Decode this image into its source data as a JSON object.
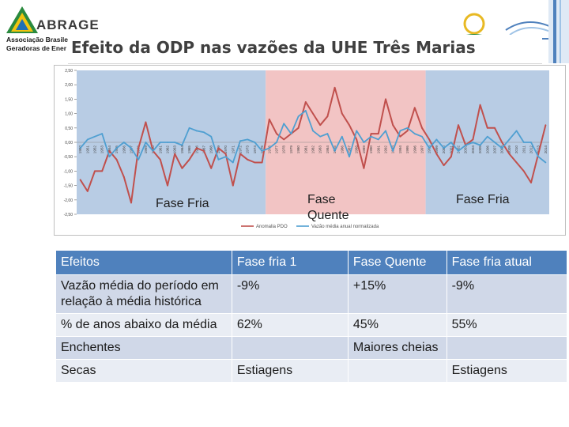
{
  "header": {
    "logo_name": "ABRAGE",
    "logo_sub_line1": "Associação Brasileira",
    "logo_sub_line2": "Geradoras de Ener",
    "title": "Efeito da ODP nas vazões da UHE Três Marias"
  },
  "phases": [
    {
      "label": "Fase Fria",
      "color": "#b8cce4"
    },
    {
      "label": "Fase Quente",
      "color": "#f2c4c4"
    },
    {
      "label": "Fase Fria",
      "color": "#b8cce4"
    }
  ],
  "chart_data": {
    "type": "line",
    "x": [
      1950,
      1951,
      1952,
      1953,
      1954,
      1955,
      1956,
      1957,
      1958,
      1959,
      1960,
      1961,
      1962,
      1963,
      1964,
      1965,
      1966,
      1967,
      1968,
      1969,
      1970,
      1971,
      1972,
      1973,
      1974,
      1975,
      1976,
      1977,
      1978,
      1979,
      1980,
      1981,
      1982,
      1983,
      1984,
      1985,
      1986,
      1987,
      1988,
      1989,
      1990,
      1991,
      1992,
      1993,
      1994,
      1995,
      1996,
      1997,
      1998,
      1999,
      2000,
      2001,
      2002,
      2003,
      2004,
      2005,
      2006,
      2007,
      2008,
      2009,
      2010,
      2011,
      2012,
      2013,
      2014
    ],
    "ylim": [
      -2.5,
      2.5
    ],
    "yticks": [
      "2,50",
      "2,00",
      "1,50",
      "1,00",
      "0,50",
      "0,00",
      "-0,50",
      "-1,00",
      "-1,50",
      "-2,00",
      "-2,50"
    ],
    "series": [
      {
        "name": "Anomalia PDO",
        "color": "#c0504d",
        "values": [
          -1.3,
          -1.7,
          -1.0,
          -1.0,
          -0.3,
          -0.6,
          -1.2,
          -2.1,
          -0.2,
          0.7,
          -0.3,
          -0.6,
          -1.5,
          -0.4,
          -0.9,
          -0.6,
          -0.2,
          -0.3,
          -0.9,
          -0.2,
          -0.4,
          -1.5,
          -0.4,
          -0.6,
          -0.7,
          -0.7,
          0.8,
          0.3,
          0.1,
          0.3,
          0.5,
          1.4,
          1.0,
          0.6,
          0.9,
          1.9,
          1.0,
          0.6,
          0.1,
          -0.9,
          0.3,
          0.3,
          1.5,
          0.6,
          0.2,
          0.4,
          1.2,
          0.5,
          0.1,
          -0.4,
          -0.8,
          -0.5,
          0.6,
          -0.1,
          0.1,
          1.3,
          0.5,
          0.5,
          0.0,
          -0.4,
          -0.7,
          -1.0,
          -1.4,
          -0.4,
          0.6
        ]
      },
      {
        "name": "Vazão média anual normalizada",
        "color": "#4f9fd1",
        "values": [
          -0.2,
          0.1,
          0.2,
          0.3,
          -0.5,
          -0.2,
          0.0,
          -0.2,
          -0.6,
          0.0,
          -0.3,
          0.0,
          0.0,
          0.0,
          -0.1,
          0.5,
          0.4,
          0.35,
          0.2,
          -0.6,
          -0.5,
          -0.7,
          0.05,
          0.1,
          0.0,
          -0.3,
          -0.2,
          0.0,
          0.65,
          0.3,
          0.9,
          1.1,
          0.4,
          0.2,
          0.3,
          -0.3,
          0.2,
          -0.5,
          0.4,
          0.0,
          0.2,
          0.1,
          0.4,
          -0.3,
          0.4,
          0.5,
          0.3,
          0.2,
          -0.2,
          0.1,
          -0.2,
          0.0,
          -0.3,
          -0.1,
          0.0,
          -0.1,
          0.2,
          0.0,
          -0.2,
          0.1,
          0.4,
          0.0,
          0.0,
          -0.5,
          -0.7
        ]
      }
    ],
    "legend_position": "bottom"
  },
  "table": {
    "headers": [
      "Efeitos",
      "Fase fria 1",
      "Fase Quente",
      "Fase fria atual"
    ],
    "rows": [
      [
        "Vazão média do período em relação à média histórica",
        "-9%",
        "+15%",
        "-9%"
      ],
      [
        "% de anos abaixo da média",
        "62%",
        "45%",
        "55%"
      ],
      [
        "Enchentes",
        "",
        "Maiores cheias",
        ""
      ],
      [
        "Secas",
        "Estiagens",
        "",
        "Estiagens"
      ]
    ]
  }
}
